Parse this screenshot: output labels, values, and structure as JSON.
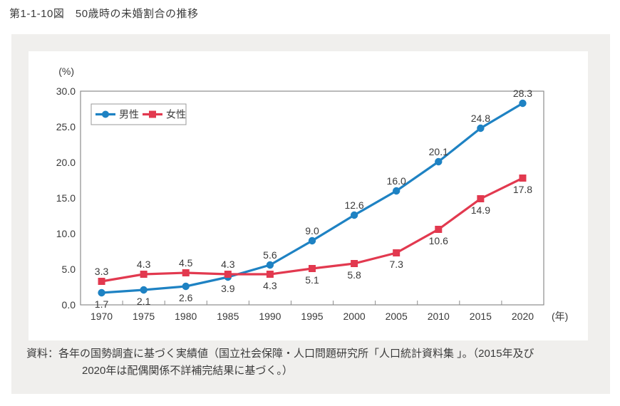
{
  "title": "第1-1-10図　50歳時の未婚割合の推移",
  "source": {
    "line1": "資料：各年の国勢調査に基づく実績値（国立社会保障・人口問題研究所「人口統計資料集 」。（2015年及び",
    "line2": "2020年は配偶関係不詳補完結果に基づく。）"
  },
  "colors": {
    "male_line": "#1e82c3",
    "female_line": "#e2394f",
    "axis": "#8c8c8c",
    "panel_bg": "#f0efed",
    "label_text": "#3a3a3a"
  },
  "chart_data": {
    "type": "line",
    "title": "50歳時の未婚割合の推移",
    "unit_y": "(%)",
    "unit_x": "(年)",
    "categories": [
      "1970",
      "1975",
      "1980",
      "1985",
      "1990",
      "1995",
      "2000",
      "2005",
      "2010",
      "2015",
      "2020"
    ],
    "ylim": [
      0,
      30
    ],
    "ytick_step": 5,
    "ytick_labels": [
      "0.0",
      "5.0",
      "10.0",
      "15.0",
      "20.0",
      "25.0",
      "30.0"
    ],
    "grid": false,
    "legend_position": "top-left-inside",
    "series": [
      {
        "name": "男性",
        "color": "#1e82c3",
        "marker": "circle",
        "values": [
          1.7,
          2.1,
          2.6,
          3.9,
          5.6,
          9.0,
          12.6,
          16.0,
          20.1,
          24.8,
          28.3
        ],
        "label_pos": [
          "below",
          "below",
          "below",
          "below",
          "above",
          "above",
          "above",
          "above",
          "above",
          "above",
          "above"
        ]
      },
      {
        "name": "女性",
        "color": "#e2394f",
        "marker": "square",
        "values": [
          3.3,
          4.3,
          4.5,
          4.3,
          4.3,
          5.1,
          5.8,
          7.3,
          10.6,
          14.9,
          17.8
        ],
        "label_pos": [
          "above",
          "above",
          "above",
          "above",
          "below",
          "below",
          "below",
          "below",
          "below",
          "below",
          "below"
        ]
      }
    ]
  }
}
